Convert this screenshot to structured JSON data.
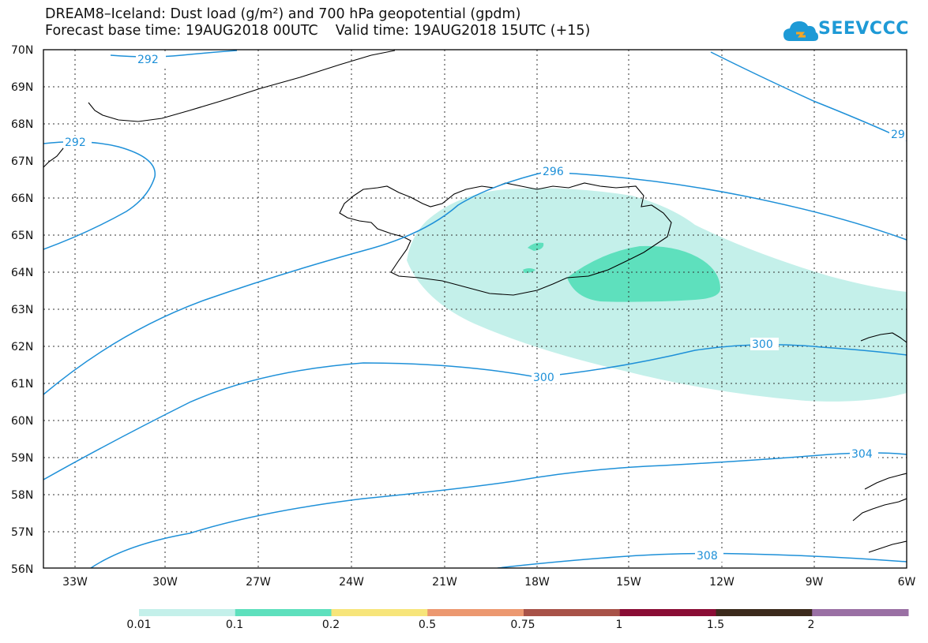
{
  "header": {
    "title_line1": "DREAM8–Iceland: Dust load (g/m²) and 700 hPa geopotential (gpdm)",
    "title_line2": "Forecast base time: 19AUG2018 00UTC    Valid time: 19AUG2018 15UTC (+15)"
  },
  "logo": {
    "text": "SEEVCCC",
    "color": "#1e9ad6"
  },
  "axes": {
    "lat_labels": [
      "70N",
      "69N",
      "68N",
      "67N",
      "66N",
      "65N",
      "64N",
      "63N",
      "62N",
      "61N",
      "60N",
      "59N",
      "58N",
      "57N",
      "56N"
    ],
    "lon_labels": [
      "33W",
      "30W",
      "27W",
      "24W",
      "21W",
      "18W",
      "15W",
      "12W",
      "9W",
      "6W"
    ]
  },
  "contours": {
    "color": "#1e90d8",
    "labels": [
      "292",
      "292",
      "29",
      "296",
      "300",
      "300",
      "304",
      "308"
    ]
  },
  "dust": {
    "colors": {
      "low": "#c4f0ea",
      "mid": "#5ee0bd"
    }
  },
  "colorbar": {
    "colors": [
      "#c4f0ea",
      "#5ee0bd",
      "#f7e57a",
      "#ec9870",
      "#a85248",
      "#8a0d35",
      "#3c2a1c",
      "#9a70a4"
    ],
    "labels": [
      "0.01",
      "0.1",
      "0.2",
      "0.5",
      "0.75",
      "1",
      "1.5",
      "2"
    ]
  }
}
